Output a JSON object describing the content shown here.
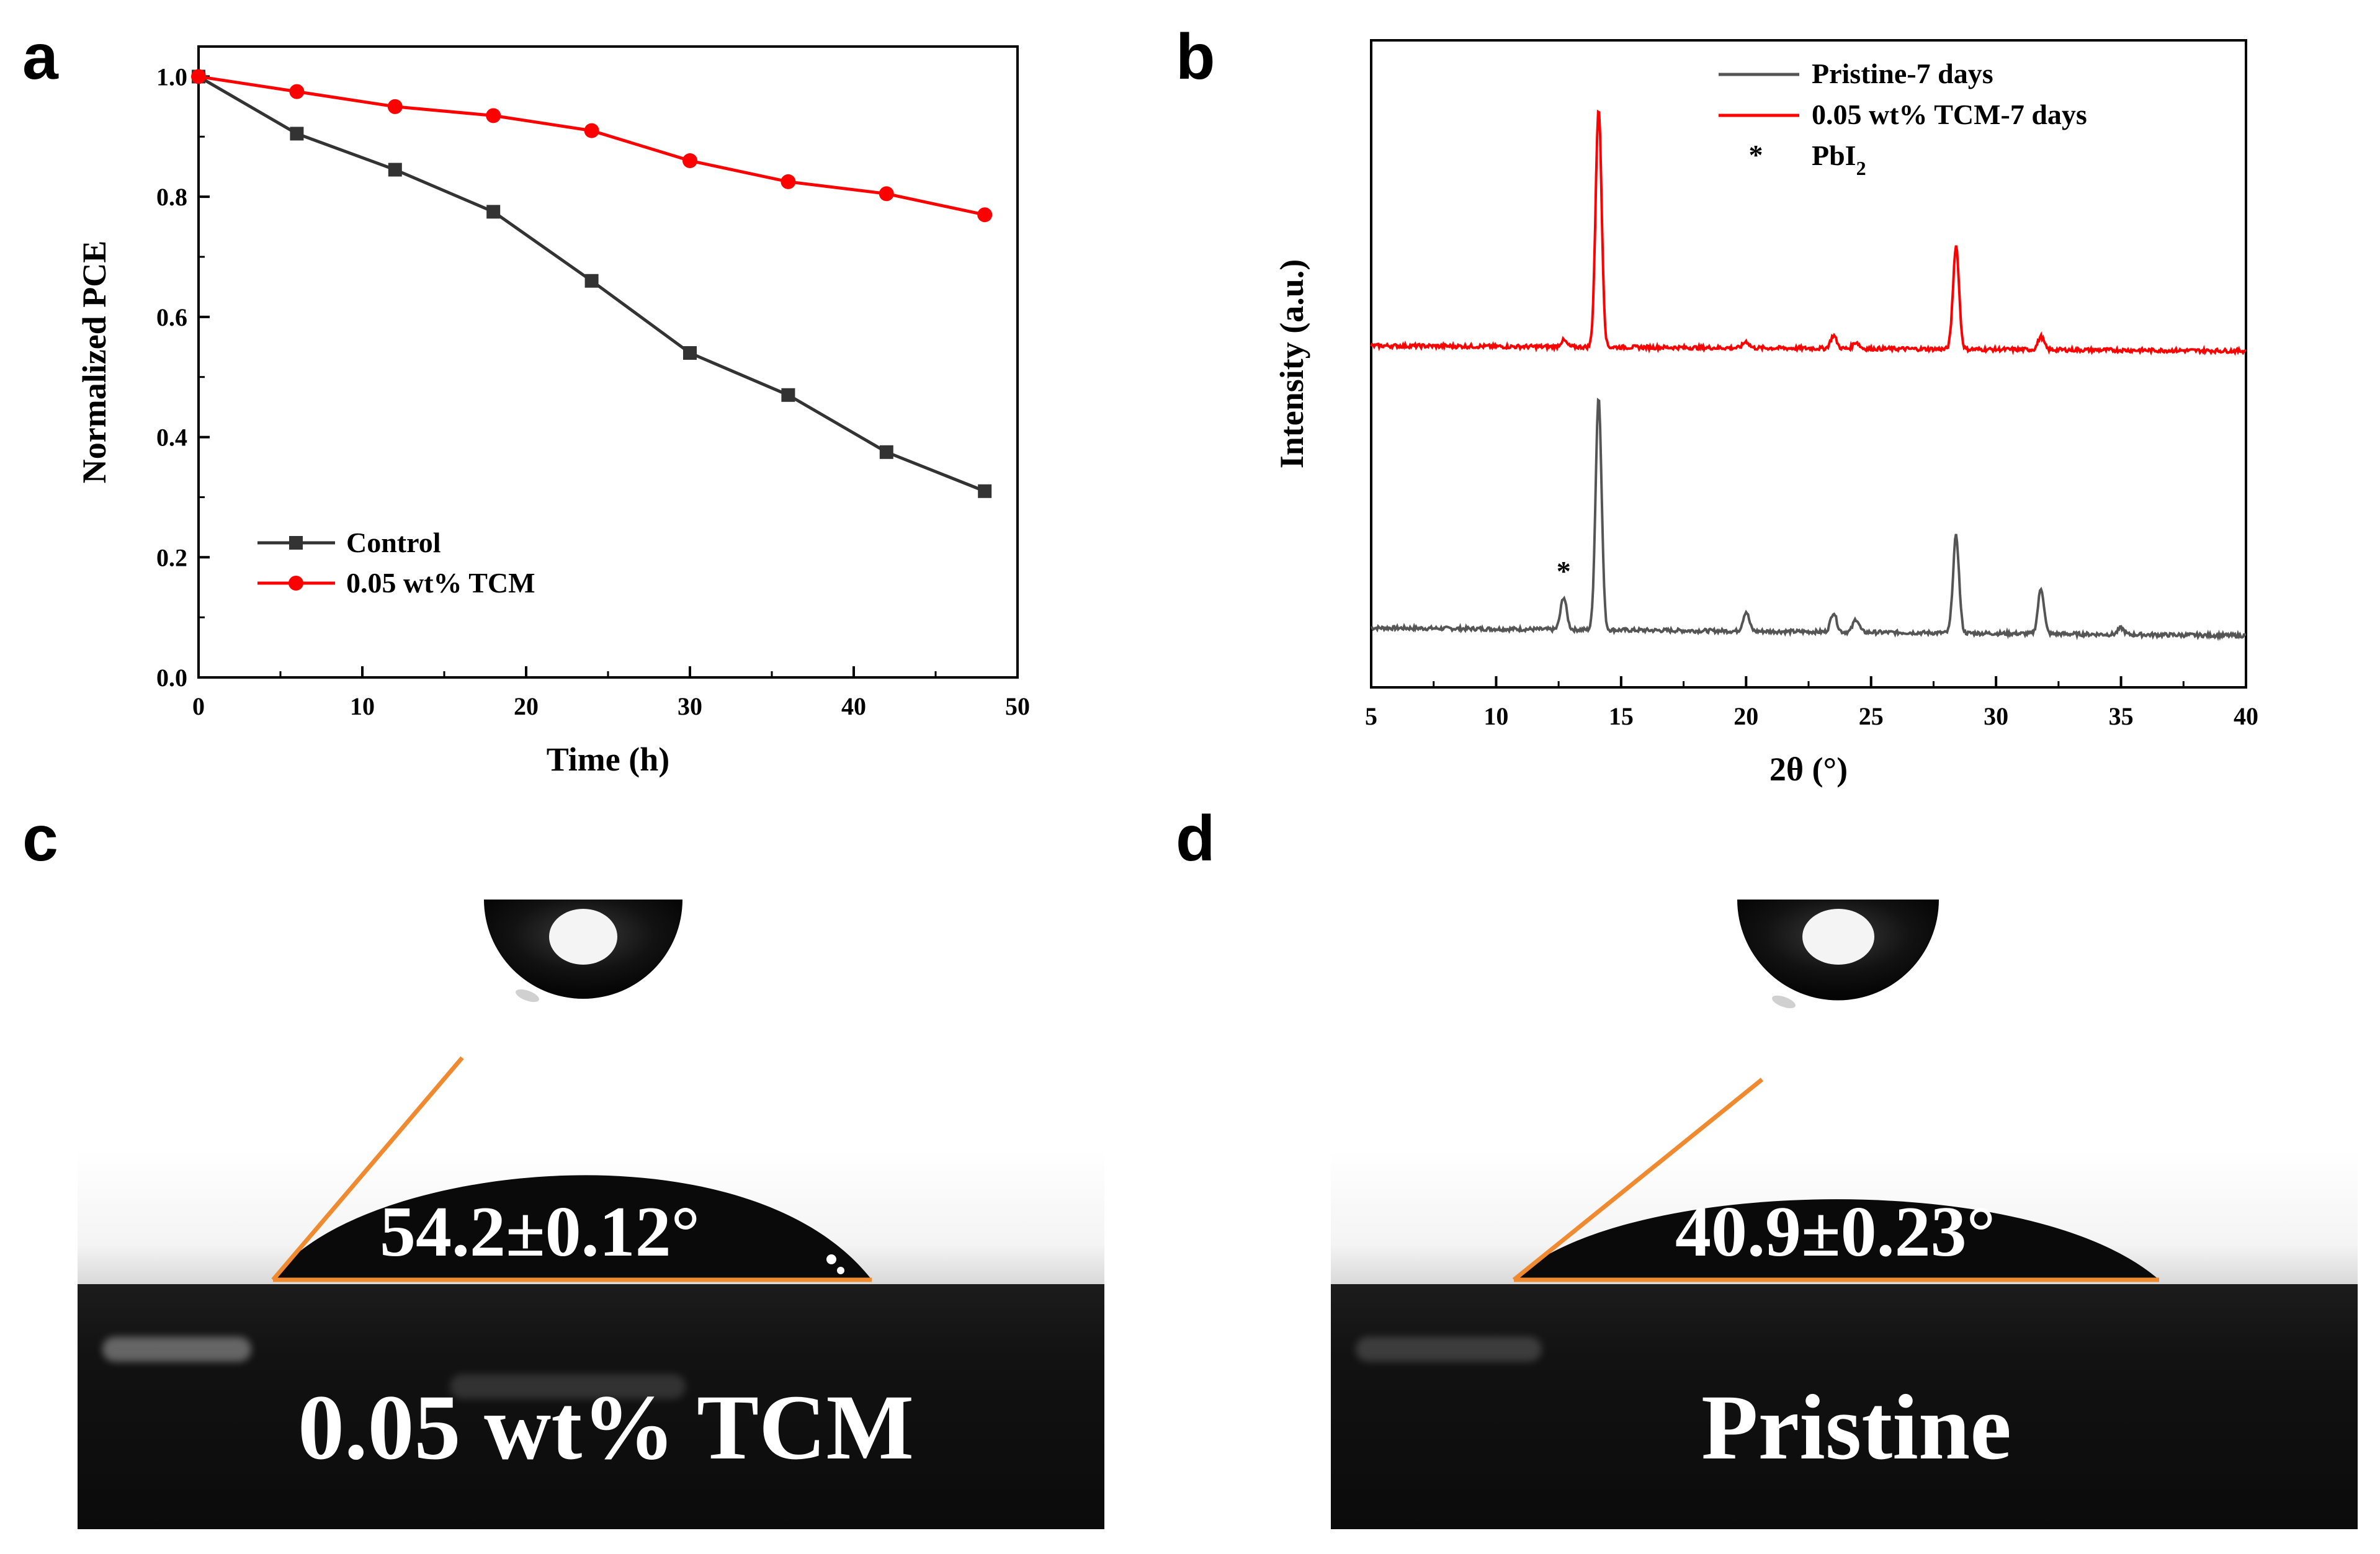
{
  "panels": {
    "a": "a",
    "b": "b",
    "c": "c",
    "d": "d"
  },
  "chart_data": [
    {
      "type": "line",
      "panel": "a",
      "xlabel": "Time (h)",
      "ylabel": "Normalized PCE",
      "xlim": [
        0,
        50
      ],
      "ylim": [
        0.0,
        1.05
      ],
      "xticks": [
        0,
        10,
        20,
        30,
        40,
        50
      ],
      "yticks": [
        0.0,
        0.2,
        0.4,
        0.6,
        0.8,
        1.0
      ],
      "xtick_labels": [
        "0",
        "10",
        "20",
        "30",
        "40",
        "50"
      ],
      "ytick_labels": [
        "0.0",
        "0.2",
        "0.4",
        "0.6",
        "0.8",
        "1.0"
      ],
      "x": [
        0,
        6,
        12,
        18,
        24,
        30,
        36,
        42,
        48
      ],
      "series": [
        {
          "name": "Control",
          "color": "#333333",
          "marker": "square",
          "values": [
            1.0,
            0.905,
            0.845,
            0.775,
            0.66,
            0.54,
            0.47,
            0.375,
            0.31
          ]
        },
        {
          "name": "0.05 wt% TCM",
          "color": "#ff0000",
          "marker": "circle",
          "values": [
            1.0,
            0.975,
            0.95,
            0.935,
            0.91,
            0.86,
            0.825,
            0.805,
            0.77
          ]
        }
      ],
      "legend": "lower-left"
    },
    {
      "type": "line",
      "panel": "b",
      "xlabel": "2θ (°)",
      "ylabel": "Intensity (a.u.)",
      "xlim": [
        5,
        40
      ],
      "xticks": [
        5,
        10,
        15,
        20,
        25,
        30,
        35,
        40
      ],
      "xtick_labels": [
        "5",
        "10",
        "15",
        "20",
        "25",
        "30",
        "35",
        "40"
      ],
      "series": [
        {
          "name": "Pristine-7 days",
          "color": "#555555",
          "baseline": 0.08,
          "peaks": [
            [
              12.7,
              0.05
            ],
            [
              14.1,
              0.36
            ],
            [
              20.0,
              0.03
            ],
            [
              23.5,
              0.03
            ],
            [
              24.4,
              0.02
            ],
            [
              28.4,
              0.15
            ],
            [
              31.8,
              0.07
            ],
            [
              35.0,
              0.01
            ]
          ]
        },
        {
          "name": "0.05 wt% TCM-7 days",
          "color": "#ff0000",
          "baseline": 0.52,
          "peaks": [
            [
              12.7,
              0.01
            ],
            [
              14.1,
              0.37
            ],
            [
              20.0,
              0.01
            ],
            [
              23.5,
              0.02
            ],
            [
              24.4,
              0.01
            ],
            [
              28.4,
              0.16
            ],
            [
              31.8,
              0.02
            ]
          ]
        }
      ],
      "annotation": "*",
      "legend_entries": [
        "Pristine-7 days",
        "0.05 wt% TCM-7 days",
        "* PbI2"
      ],
      "legend": "top"
    }
  ],
  "contact_angles": {
    "left": {
      "angle": "54.2±0.12°",
      "sample": "0.05 wt% TCM"
    },
    "right": {
      "angle": "40.9±0.23°",
      "sample": "Pristine"
    }
  }
}
